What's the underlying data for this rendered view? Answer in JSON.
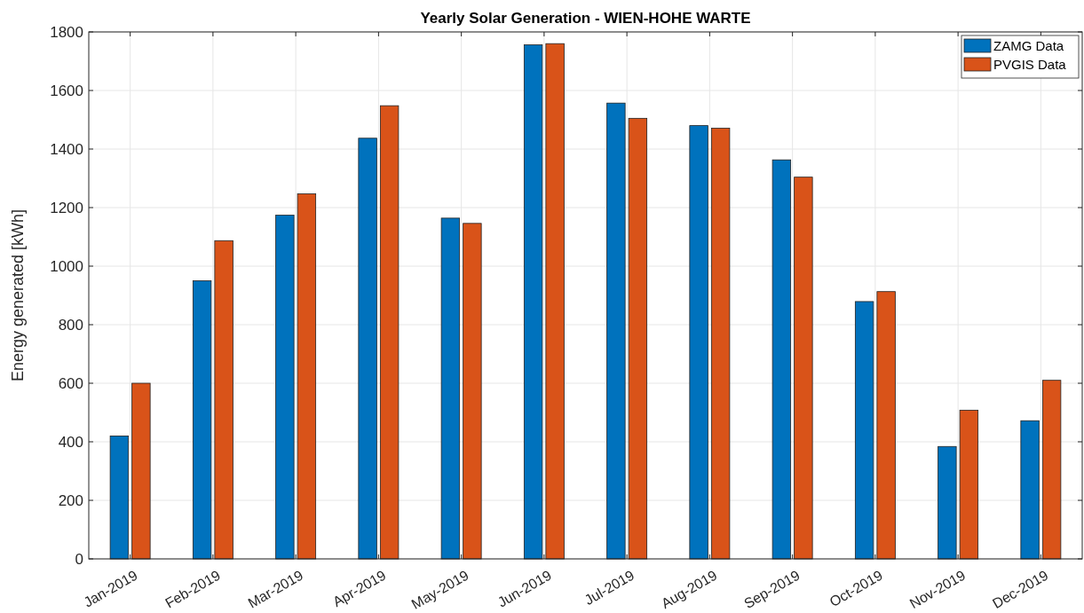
{
  "chart_data": {
    "type": "bar",
    "title": "Yearly Solar Generation - WIEN-HOHE WARTE",
    "ylabel": "Energy generated [kWh]",
    "categories": [
      "Jan-2019",
      "Feb-2019",
      "Mar-2019",
      "Apr-2019",
      "May-2019",
      "Jun-2019",
      "Jul-2019",
      "Aug-2019",
      "Sep-2019",
      "Oct-2019",
      "Nov-2019",
      "Dec-2019"
    ],
    "series": [
      {
        "name": "ZAMG Data",
        "color": "#0072bd",
        "values": [
          420,
          950,
          1174,
          1437,
          1164,
          1756,
          1557,
          1480,
          1363,
          879,
          384,
          472
        ]
      },
      {
        "name": "PVGIS Data",
        "color": "#d95319",
        "values": [
          600,
          1087,
          1247,
          1548,
          1146,
          1760,
          1505,
          1471,
          1304,
          913,
          508,
          610
        ]
      }
    ],
    "ylim": [
      0,
      1800
    ],
    "yticks": [
      0,
      200,
      400,
      600,
      800,
      1000,
      1200,
      1400,
      1600,
      1800
    ],
    "grid": true,
    "legend": "top right"
  }
}
